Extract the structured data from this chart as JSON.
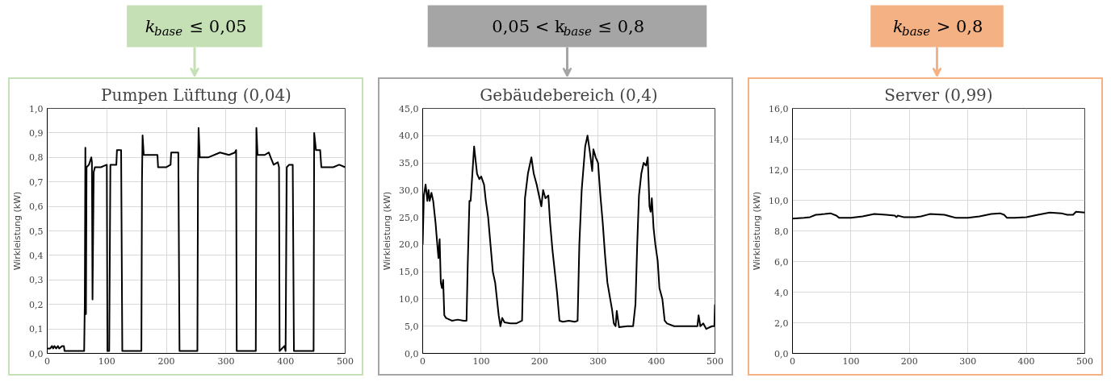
{
  "chart_data": [
    {
      "type": "line",
      "title": "Pumpen Lüftung (0,04)",
      "ylabel": "Wirkleistung (kW)",
      "annotations": [
        "k$_{base}$ ≤ 0,05"
      ],
      "color": "#000000",
      "grid": true,
      "xlim": [
        0,
        500
      ],
      "xticks": [
        0,
        100,
        200,
        300,
        400,
        500
      ],
      "ylim": [
        0,
        1
      ],
      "yticks": [
        {
          "value": 0,
          "label": "0,0"
        },
        {
          "value": 0.1,
          "label": "0,1"
        },
        {
          "value": 0.2,
          "label": "0,2"
        },
        {
          "value": 0.3,
          "label": "0,3"
        },
        {
          "value": 0.4,
          "label": "0,4"
        },
        {
          "value": 0.5,
          "label": "0,5"
        },
        {
          "value": 0.6,
          "label": "0,6"
        },
        {
          "value": 0.7,
          "label": "0,7"
        },
        {
          "value": 0.8,
          "label": "0,8"
        },
        {
          "value": 0.9,
          "label": "0,9"
        },
        {
          "value": 1,
          "label": "1,0"
        }
      ],
      "x": [
        0,
        5,
        8,
        10,
        12,
        15,
        18,
        20,
        25,
        28,
        29,
        62,
        63,
        64,
        65,
        66,
        70,
        74,
        75,
        76,
        78,
        80,
        90,
        100,
        101,
        104,
        106,
        110,
        116,
        117,
        124,
        126,
        158,
        159,
        160,
        162,
        175,
        185,
        186,
        200,
        207,
        208,
        220,
        222,
        252,
        253,
        254,
        256,
        270,
        290,
        305,
        315,
        317,
        318,
        350,
        351,
        353,
        365,
        372,
        375,
        380,
        387,
        389,
        390,
        398,
        400,
        402,
        406,
        412,
        414,
        447,
        448,
        451,
        458,
        460,
        480,
        490,
        500
      ],
      "values": [
        0.02,
        0.02,
        0.03,
        0.02,
        0.03,
        0.02,
        0.03,
        0.02,
        0.03,
        0.03,
        0.01,
        0.01,
        0.2,
        0.84,
        0.16,
        0.76,
        0.77,
        0.8,
        0.78,
        0.22,
        0.74,
        0.76,
        0.76,
        0.77,
        0.01,
        0.01,
        0.77,
        0.77,
        0.77,
        0.83,
        0.83,
        0.01,
        0.01,
        0.7,
        0.89,
        0.81,
        0.81,
        0.81,
        0.76,
        0.76,
        0.77,
        0.82,
        0.82,
        0.01,
        0.01,
        0.73,
        0.92,
        0.8,
        0.8,
        0.82,
        0.81,
        0.82,
        0.83,
        0.01,
        0.01,
        0.92,
        0.81,
        0.81,
        0.82,
        0.8,
        0.77,
        0.78,
        0.76,
        0.01,
        0.03,
        0.01,
        0.76,
        0.77,
        0.77,
        0.01,
        0.01,
        0.9,
        0.83,
        0.83,
        0.76,
        0.76,
        0.77,
        0.76
      ]
    },
    {
      "type": "line",
      "title": "Gebäudebereich (0,4)",
      "ylabel": "Wirkleistung (kW)",
      "annotations": [
        "0,05 < k$_{base}$ ≤ 0,8"
      ],
      "color": "#000000",
      "grid": true,
      "xlim": [
        0,
        500
      ],
      "xticks": [
        0,
        100,
        200,
        300,
        400,
        500
      ],
      "ylim": [
        0,
        45
      ],
      "yticks": [
        {
          "value": 0,
          "label": "0,0"
        },
        {
          "value": 5,
          "label": "5,0"
        },
        {
          "value": 10,
          "label": "10,0"
        },
        {
          "value": 15,
          "label": "15,0"
        },
        {
          "value": 20,
          "label": "20,0"
        },
        {
          "value": 25,
          "label": "25,0"
        },
        {
          "value": 30,
          "label": "30,0"
        },
        {
          "value": 35,
          "label": "35,0"
        },
        {
          "value": 40,
          "label": "40,0"
        },
        {
          "value": 45,
          "label": "45,0"
        }
      ],
      "x": [
        0,
        2,
        5,
        8,
        10,
        12,
        15,
        18,
        20,
        22,
        25,
        27,
        29,
        31,
        33,
        35,
        37,
        40,
        50,
        60,
        70,
        75,
        77,
        80,
        82,
        85,
        88,
        90,
        93,
        97,
        100,
        105,
        108,
        112,
        116,
        120,
        124,
        127,
        130,
        133,
        136,
        140,
        150,
        160,
        170,
        173,
        175,
        180,
        186,
        190,
        195,
        200,
        203,
        206,
        210,
        215,
        218,
        222,
        226,
        230,
        234,
        240,
        250,
        260,
        265,
        268,
        272,
        278,
        282,
        286,
        290,
        292,
        296,
        300,
        304,
        308,
        312,
        316,
        320,
        324,
        327,
        330,
        332,
        336,
        350,
        360,
        364,
        367,
        370,
        374,
        378,
        382,
        385,
        388,
        390,
        392,
        395,
        398,
        402,
        405,
        410,
        414,
        418,
        430,
        440,
        450,
        460,
        470,
        472,
        475,
        480,
        485,
        495,
        499,
        500
      ],
      "values": [
        20,
        29,
        31,
        28,
        30,
        28,
        29.5,
        28,
        26,
        24,
        20,
        17.5,
        21,
        13,
        12,
        13.5,
        7,
        6.5,
        6,
        6.2,
        6,
        6,
        16,
        28,
        28,
        33,
        38,
        36,
        33,
        32,
        32.5,
        31,
        28,
        25,
        20,
        15,
        13,
        10,
        7,
        5,
        6.5,
        5.7,
        5.5,
        5.5,
        6,
        20,
        28.5,
        33,
        36,
        33,
        31,
        28.5,
        27,
        30,
        28.5,
        29,
        24,
        19,
        15,
        11,
        6,
        5.8,
        6,
        5.8,
        6,
        20,
        30,
        38,
        40,
        37,
        33.5,
        37.5,
        36,
        35,
        29,
        24,
        18,
        13,
        10.5,
        8,
        5.5,
        5,
        7.8,
        4.8,
        5,
        5,
        9,
        20,
        29,
        33,
        35,
        34.5,
        36,
        27,
        26,
        28.5,
        23,
        20,
        17,
        12,
        10,
        6,
        5.5,
        5,
        5,
        5,
        5,
        5,
        7,
        5,
        5.5,
        4.5,
        5,
        5,
        9
      ]
    },
    {
      "type": "line",
      "title": "Server (0,99)",
      "ylabel": "Wirkleistung (kW)",
      "annotations": [
        "k$_{base}$ > 0,8"
      ],
      "color": "#000000",
      "grid": true,
      "xlim": [
        0,
        500
      ],
      "xticks": [
        0,
        100,
        200,
        300,
        400,
        500
      ],
      "ylim": [
        0,
        16
      ],
      "yticks": [
        {
          "value": 0,
          "label": "0,0"
        },
        {
          "value": 2,
          "label": "2,0"
        },
        {
          "value": 4,
          "label": "4,0"
        },
        {
          "value": 6,
          "label": "6,0"
        },
        {
          "value": 8,
          "label": "8,0"
        },
        {
          "value": 10,
          "label": "10,0"
        },
        {
          "value": 12,
          "label": "12,0"
        },
        {
          "value": 14,
          "label": "14,0"
        },
        {
          "value": 16,
          "label": "16,0"
        }
      ],
      "x": [
        0,
        20,
        30,
        40,
        55,
        65,
        75,
        80,
        100,
        120,
        140,
        160,
        175,
        178,
        180,
        190,
        210,
        220,
        235,
        260,
        270,
        280,
        300,
        320,
        340,
        355,
        362,
        367,
        380,
        400,
        420,
        440,
        460,
        470,
        480,
        485,
        500
      ],
      "values": [
        8.8,
        8.85,
        8.9,
        9.05,
        9.1,
        9.15,
        9.0,
        8.85,
        8.85,
        8.95,
        9.1,
        9.05,
        9.0,
        8.9,
        9.0,
        8.9,
        8.9,
        8.95,
        9.1,
        9.05,
        8.95,
        8.85,
        8.85,
        8.95,
        9.1,
        9.15,
        9.05,
        8.85,
        8.85,
        8.9,
        9.05,
        9.2,
        9.15,
        9.05,
        9.05,
        9.25,
        9.2
      ]
    }
  ]
}
